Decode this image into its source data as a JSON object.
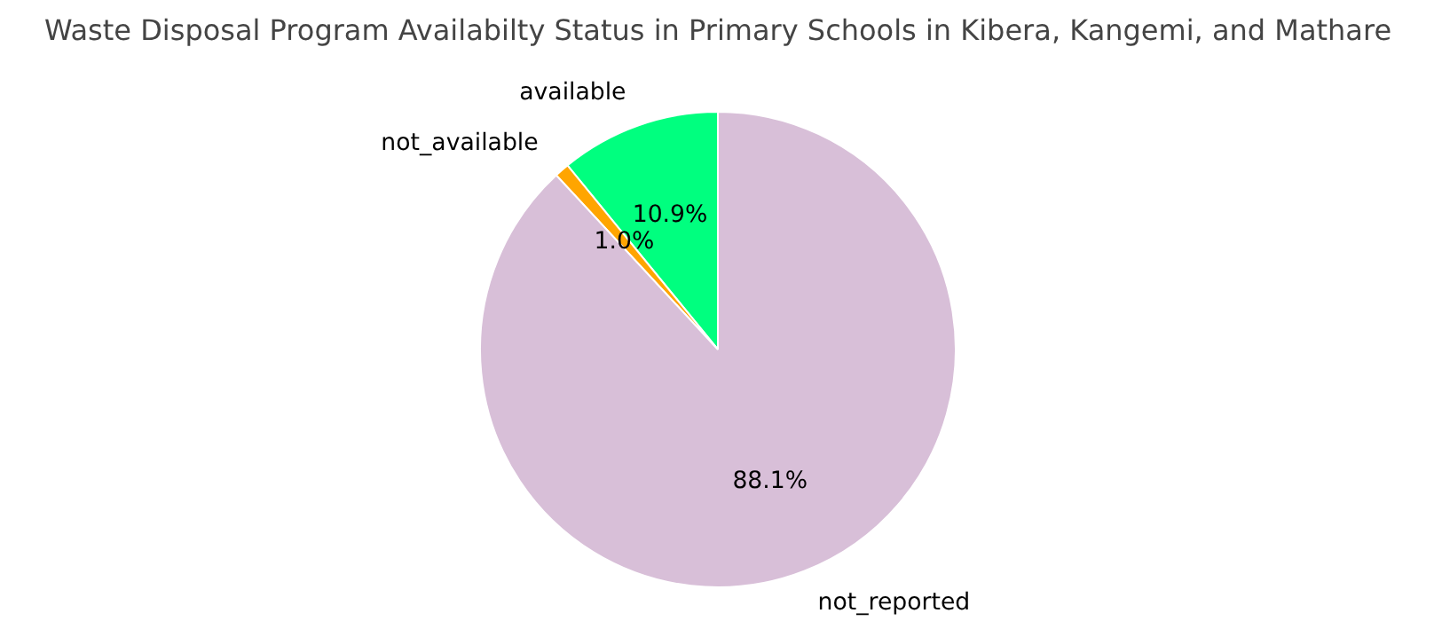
{
  "chart_data": {
    "type": "pie",
    "title": "Waste Disposal Program Availabilty Status in Primary Schools in Kibera, Kangemi, and Mathare",
    "categories": [
      "available",
      "not_available",
      "not_reported"
    ],
    "values": [
      10.9,
      1.0,
      88.1
    ],
    "colors": [
      "#00ff7f",
      "#ffa500",
      "#d8bfd8"
    ],
    "value_labels": [
      "10.9%",
      "1.0%",
      "88.1%"
    ]
  }
}
